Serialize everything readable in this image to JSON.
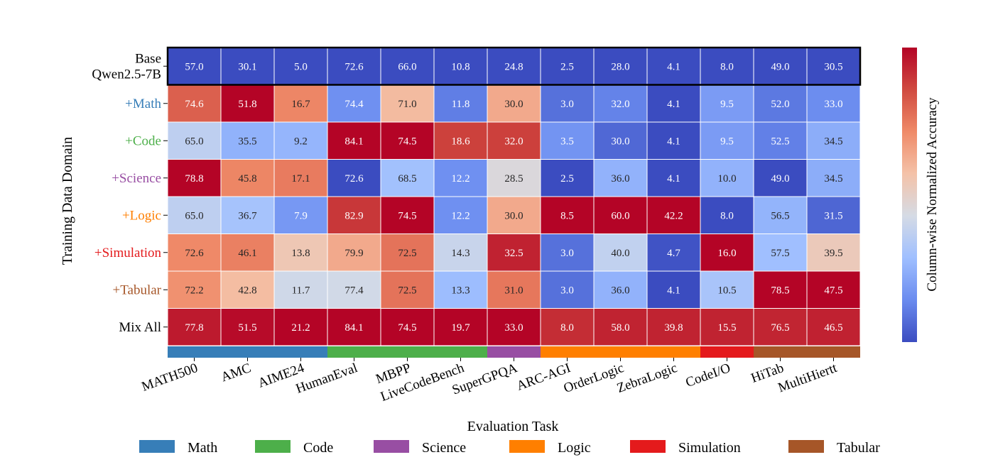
{
  "chart_data": {
    "type": "heatmap",
    "ylabel": "Training Data Domain",
    "xlabel": "Evaluation Task",
    "colorbar_label": "Column-wise Normalized Accuracy",
    "colormap": [
      "#3b4cc0",
      "#6a8bef",
      "#9fbfff",
      "#d5dbe5",
      "#f4c2a8",
      "#ef8a68",
      "#d04a40",
      "#b40426"
    ],
    "rows": [
      {
        "label": "Base\nQwen2.5-7B",
        "color": "#000000",
        "values": [
          57.0,
          30.1,
          5.0,
          72.6,
          66.0,
          10.8,
          24.8,
          2.5,
          28.0,
          4.1,
          8.0,
          49.0,
          30.5
        ]
      },
      {
        "label": "+Math",
        "color": "#377eb8",
        "values": [
          74.6,
          51.8,
          16.7,
          74.4,
          71.0,
          11.8,
          30.0,
          3.0,
          32.0,
          4.1,
          9.5,
          52.0,
          33.0
        ]
      },
      {
        "label": "+Code",
        "color": "#4daf4a",
        "values": [
          65.0,
          35.5,
          9.2,
          84.1,
          74.5,
          18.6,
          32.0,
          3.5,
          30.0,
          4.1,
          9.5,
          52.5,
          34.5
        ]
      },
      {
        "label": "+Science",
        "color": "#984ea3",
        "values": [
          78.8,
          45.8,
          17.1,
          72.6,
          68.5,
          12.2,
          28.5,
          2.5,
          36.0,
          4.1,
          10.0,
          49.0,
          34.5
        ]
      },
      {
        "label": "+Logic",
        "color": "#ff7f00",
        "values": [
          65.0,
          36.7,
          7.9,
          82.9,
          74.5,
          12.2,
          30.0,
          8.5,
          60.0,
          42.2,
          8.0,
          56.5,
          31.5
        ]
      },
      {
        "label": "+Simulation",
        "color": "#e41a1c",
        "values": [
          72.6,
          46.1,
          13.8,
          79.9,
          72.5,
          14.3,
          32.5,
          3.0,
          40.0,
          4.7,
          16.0,
          57.5,
          39.5
        ]
      },
      {
        "label": "+Tabular",
        "color": "#a65628",
        "values": [
          72.2,
          42.8,
          11.7,
          77.4,
          72.5,
          13.3,
          31.0,
          3.0,
          36.0,
          4.1,
          10.5,
          78.5,
          47.5
        ]
      },
      {
        "label": "Mix All",
        "color": "#000000",
        "values": [
          77.8,
          51.5,
          21.2,
          84.1,
          74.5,
          19.7,
          33.0,
          8.0,
          58.0,
          39.8,
          15.5,
          76.5,
          46.5
        ]
      }
    ],
    "columns": [
      "MATH500",
      "AMC",
      "AIME24",
      "HumanEval",
      "MBPP",
      "LiveCodeBench",
      "SuperGPQA",
      "ARC-AGI",
      "OrderLogic",
      "ZebraLogic",
      "CodeI/O",
      "HiTab",
      "MultiHiertt"
    ],
    "column_domains": [
      "Math",
      "Math",
      "Math",
      "Code",
      "Code",
      "Code",
      "Science",
      "Logic",
      "Logic",
      "Logic",
      "Simulation",
      "Tabular",
      "Tabular"
    ],
    "highlighted_row": "Base\nQwen2.5-7B",
    "legend": [
      {
        "name": "Math",
        "color": "#377eb8"
      },
      {
        "name": "Code",
        "color": "#4daf4a"
      },
      {
        "name": "Science",
        "color": "#984ea3"
      },
      {
        "name": "Logic",
        "color": "#ff7f00"
      },
      {
        "name": "Simulation",
        "color": "#e41a1c"
      },
      {
        "name": "Tabular",
        "color": "#a65628"
      }
    ],
    "legend_placement": "bottom"
  }
}
